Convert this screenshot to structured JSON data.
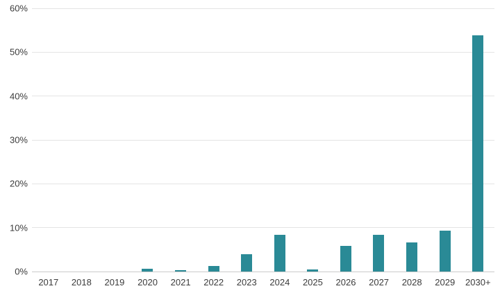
{
  "chart_data": {
    "type": "bar",
    "title": "",
    "xlabel": "",
    "ylabel": "",
    "categories": [
      "2017",
      "2018",
      "2019",
      "2020",
      "2021",
      "2022",
      "2023",
      "2024",
      "2025",
      "2026",
      "2027",
      "2028",
      "2029",
      "2030+"
    ],
    "values": [
      0,
      0,
      0,
      0.6,
      0.3,
      1.3,
      4.0,
      8.4,
      0.5,
      5.9,
      8.4,
      6.6,
      9.3,
      53.9
    ],
    "ylim": [
      0,
      60
    ],
    "yticks": [
      0,
      10,
      20,
      30,
      40,
      50,
      60
    ],
    "ytick_labels": [
      "0%",
      "10%",
      "20%",
      "30%",
      "40%",
      "50%",
      "60%"
    ],
    "grid": "horizontal",
    "legend": "none",
    "colors": {
      "bar": "#2a8a96",
      "gridline": "#e4e4e4",
      "axis_line": "#c9c9c9",
      "label": "#3b3b3b",
      "background": "#ffffff"
    }
  }
}
